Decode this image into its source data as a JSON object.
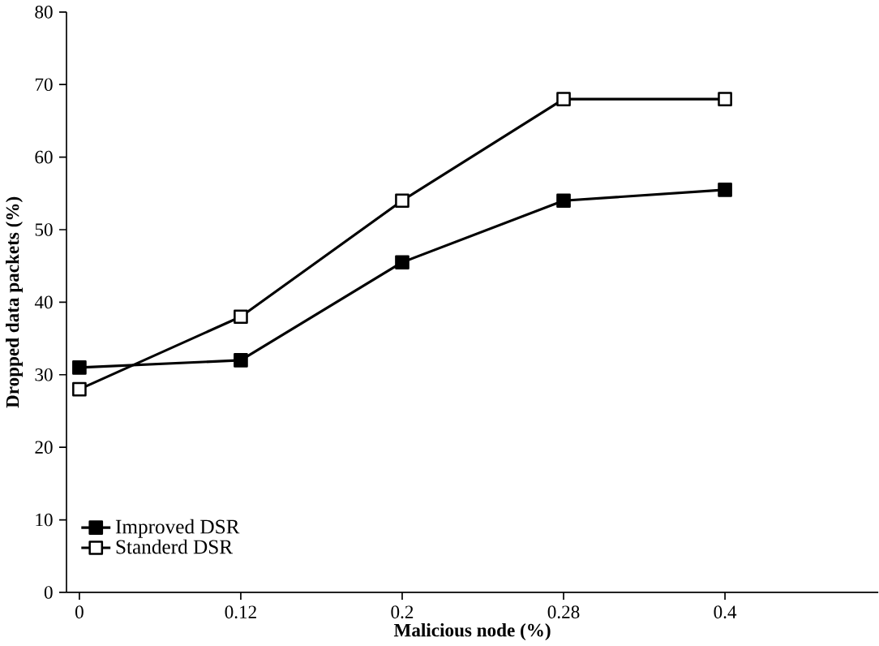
{
  "chart_data": {
    "type": "line",
    "xlabel": "Malicious node (%)",
    "ylabel": "Dropped data packets (%)",
    "categories": [
      "0",
      "0.12",
      "0.2",
      "0.28",
      "0.4"
    ],
    "series": [
      {
        "name": "Improved DSR",
        "color": "#000000",
        "values": [
          31,
          32,
          45.5,
          54,
          55.5
        ],
        "marker": "square"
      },
      {
        "name": "Standerd DSR",
        "color": "#000000",
        "values": [
          28,
          38,
          54,
          68,
          68
        ],
        "marker": "square"
      }
    ],
    "ylim": [
      0,
      80
    ],
    "yticks": [
      0,
      10,
      20,
      30,
      40,
      50,
      60,
      70,
      80
    ],
    "legend": "bottom left",
    "grid": false,
    "line_style": "solid"
  }
}
